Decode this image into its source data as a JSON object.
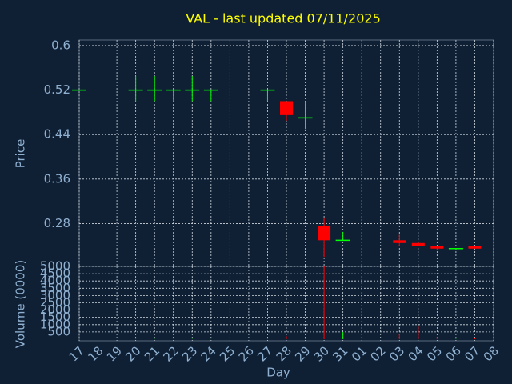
{
  "chart_data": {
    "type": "candlestick",
    "title": "VAL - last updated 07/11/2025",
    "x_label": "Day",
    "y_label": "Price",
    "categories": [
      "17",
      "18",
      "19",
      "20",
      "21",
      "22",
      "23",
      "24",
      "25",
      "26",
      "27",
      "28",
      "29",
      "30",
      "31",
      "01",
      "02",
      "03",
      "04",
      "05",
      "06",
      "07",
      "08"
    ],
    "open": [
      0.52,
      null,
      null,
      0.52,
      0.52,
      0.52,
      0.52,
      0.52,
      null,
      null,
      0.52,
      0.5,
      0.47,
      0.275,
      0.25,
      null,
      null,
      0.25,
      0.245,
      0.24,
      0.235,
      0.24,
      null
    ],
    "high": [
      0.52,
      null,
      null,
      0.545,
      0.545,
      0.52,
      0.545,
      0.52,
      null,
      null,
      0.52,
      0.5,
      0.5,
      0.29,
      0.265,
      null,
      null,
      0.26,
      0.247,
      0.24,
      0.235,
      0.24,
      null
    ],
    "low": [
      0.52,
      null,
      null,
      0.5,
      0.5,
      0.5,
      0.5,
      0.5,
      null,
      null,
      0.5,
      0.465,
      0.45,
      0.22,
      0.25,
      null,
      null,
      0.24,
      0.24,
      0.232,
      0.232,
      0.235,
      null
    ],
    "close": [
      0.52,
      null,
      null,
      0.52,
      0.52,
      0.52,
      0.52,
      0.52,
      null,
      null,
      0.52,
      0.475,
      0.47,
      0.25,
      0.25,
      null,
      null,
      0.245,
      0.24,
      0.235,
      0.235,
      0.235,
      null
    ],
    "up_color": "#00ff00",
    "down_color": "#ff0000",
    "ylim": [
      0.203,
      0.61
    ],
    "yticks": [
      0.28,
      0.36,
      0.44,
      0.52,
      0.6
    ],
    "grid": true,
    "volume": {
      "y_label": "Volume (0000)",
      "values": [
        10,
        null,
        null,
        20,
        20,
        10,
        20,
        10,
        null,
        null,
        20,
        200,
        30,
        5000,
        500,
        null,
        null,
        350,
        900,
        150,
        30,
        60,
        null
      ],
      "ylim": [
        0,
        5000
      ],
      "yticks": [
        500,
        1000,
        1500,
        2000,
        2500,
        3000,
        3500,
        4000,
        4500,
        5000
      ]
    }
  }
}
